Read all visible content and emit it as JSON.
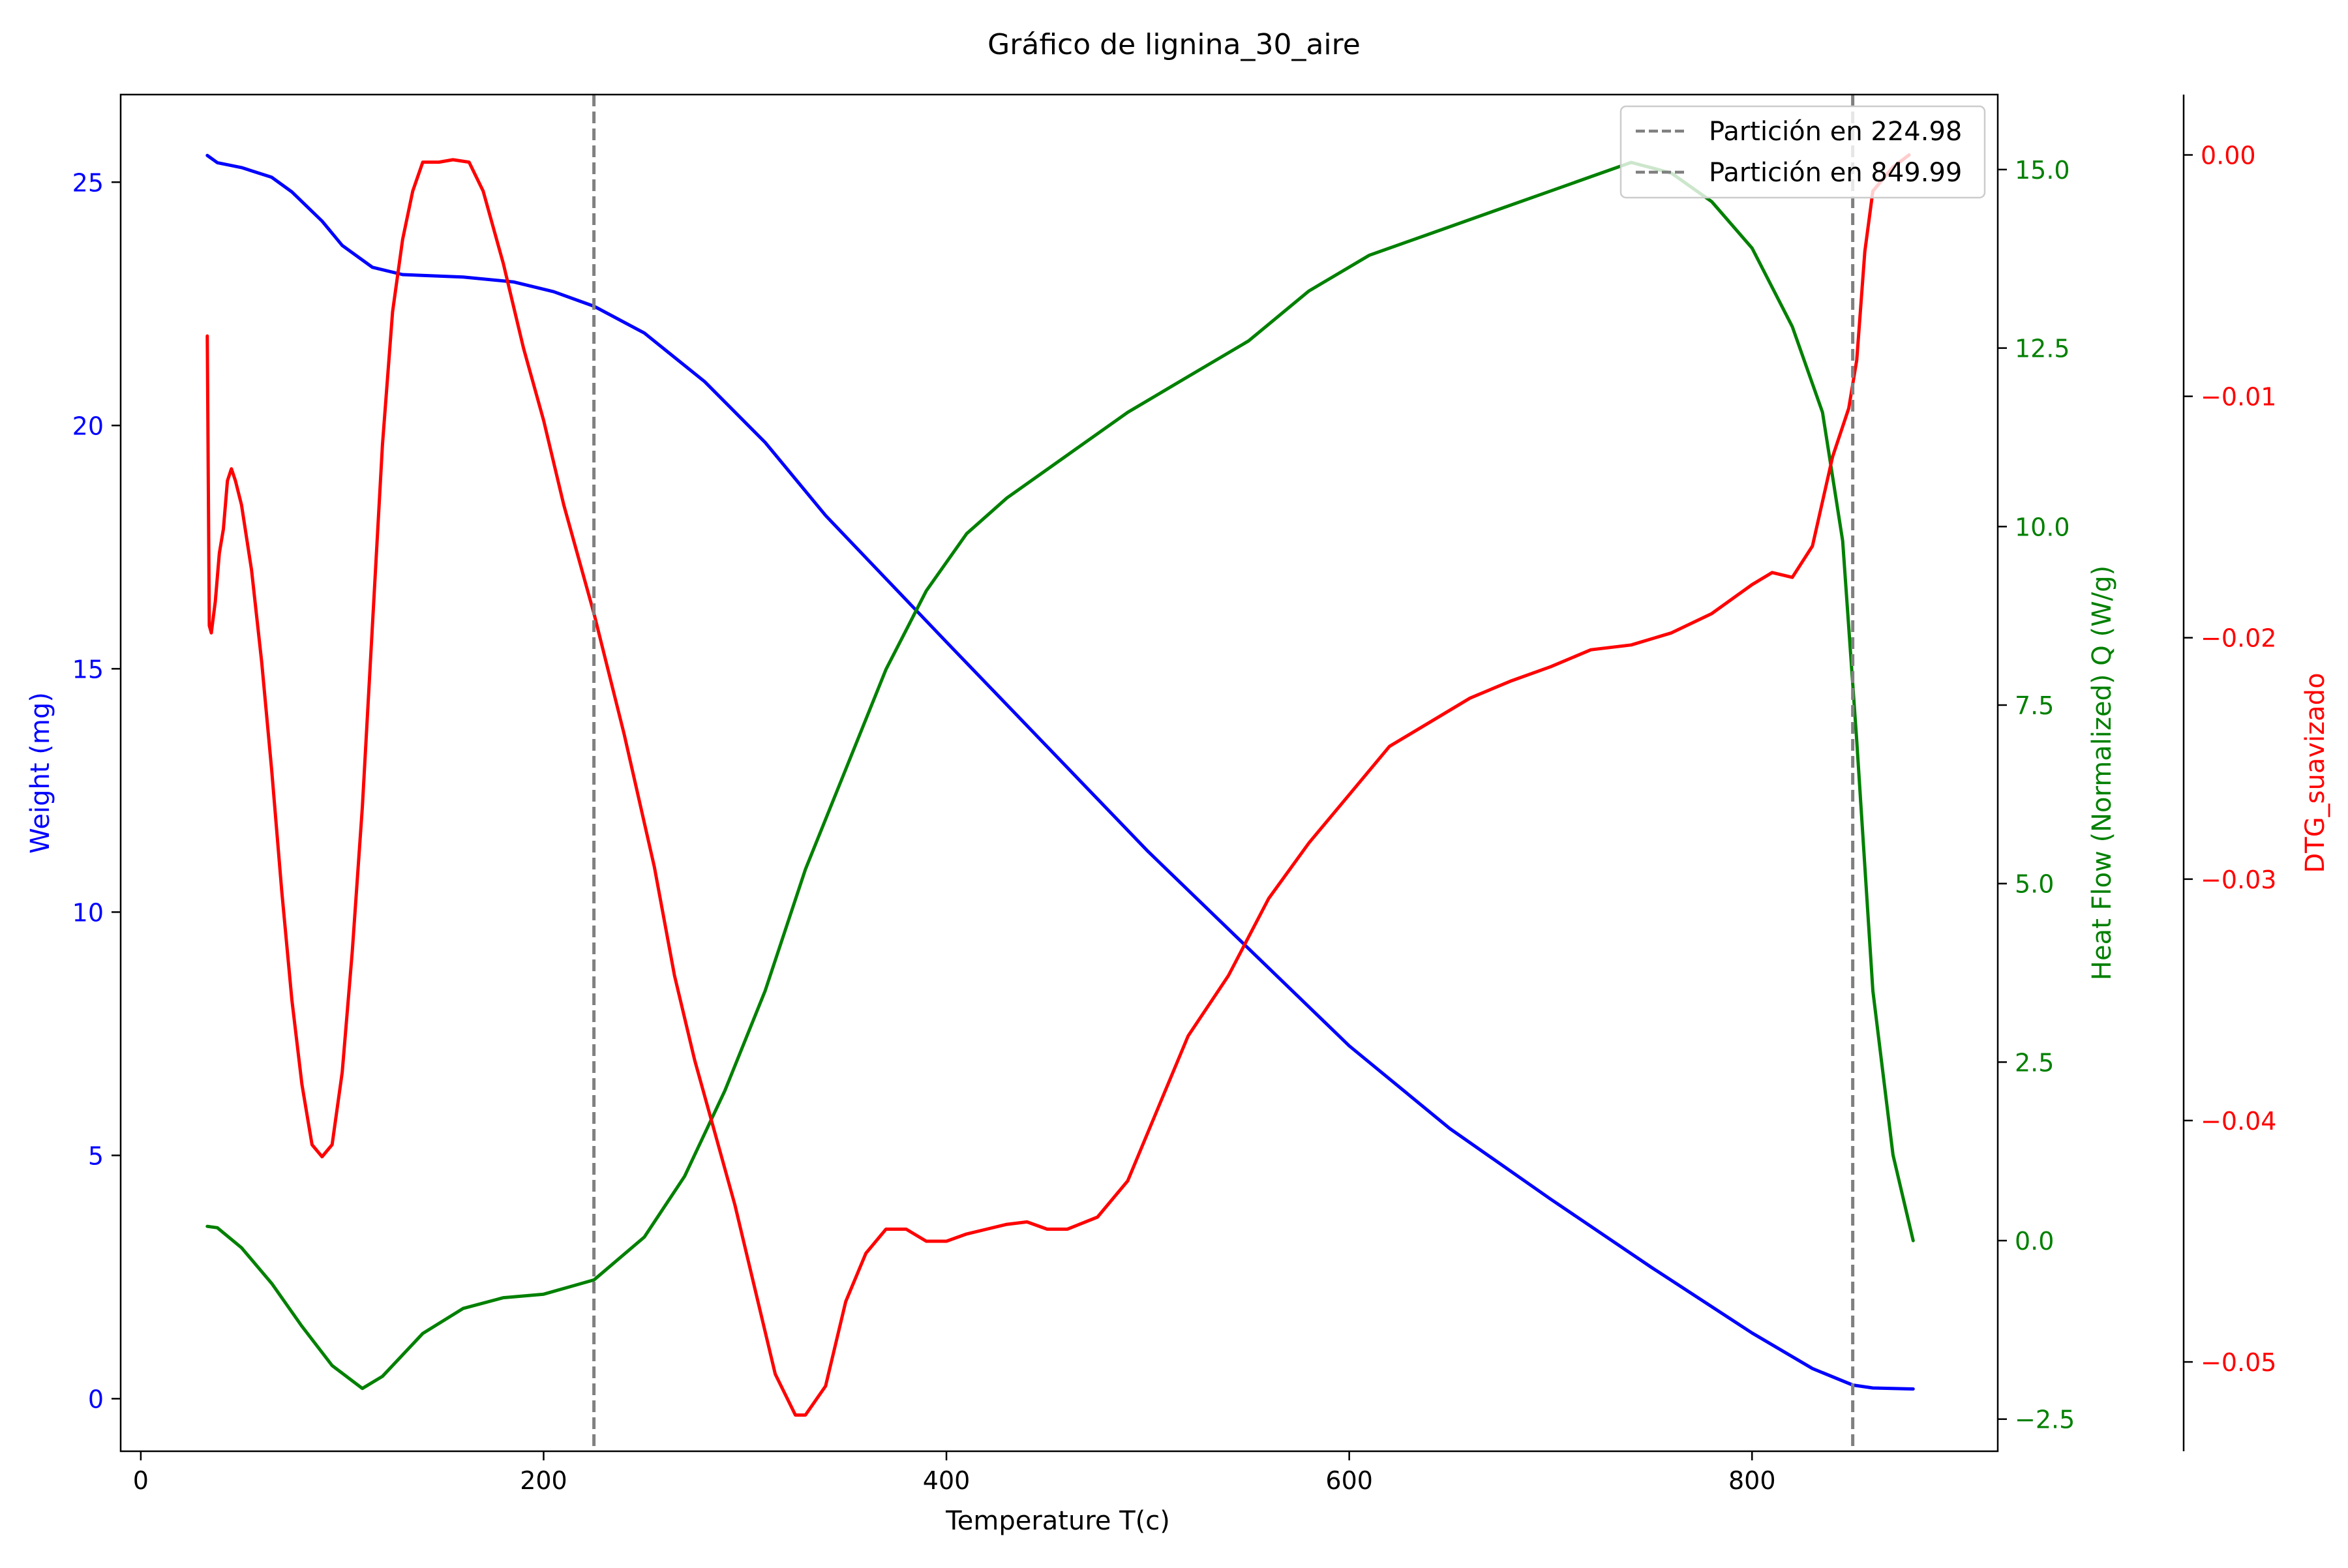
{
  "chart_data": {
    "type": "line",
    "title": "Gráfico de lignina_30_aire",
    "xlabel": "Temperature T(c)",
    "xlim": [
      -10,
      922
    ],
    "x_ticks": [
      0,
      200,
      400,
      600,
      800
    ],
    "legend_position": "top-right",
    "grid": false,
    "axes": {
      "weight": {
        "label": "Weight (mg)",
        "color": "#0000ff",
        "ylim": [
          -1.08,
          26.8
        ],
        "ticks": [
          0,
          5,
          10,
          15,
          20,
          25
        ]
      },
      "heat_flow": {
        "label": "Heat Flow (Normalized) Q (W/g)",
        "color": "#008000",
        "ylim": [
          -2.95,
          16.05
        ],
        "ticks": [
          -2.5,
          0.0,
          2.5,
          5.0,
          7.5,
          10.0,
          12.5,
          15.0
        ],
        "tick_labels": [
          "−2.5",
          "0.0",
          "2.5",
          "5.0",
          "7.5",
          "10.0",
          "12.5",
          "15.0"
        ]
      },
      "dtg": {
        "label": "DTG_suavizado",
        "color": "#ff0000",
        "ylim": [
          -0.0537,
          0.0025
        ],
        "ticks": [
          -0.05,
          -0.04,
          -0.03,
          -0.02,
          -0.01,
          0.0
        ],
        "tick_labels": [
          "−0.05",
          "−0.04",
          "−0.03",
          "−0.02",
          "−0.01",
          "0.00"
        ]
      }
    },
    "partitions": [
      {
        "x": 224.98,
        "label": "Partición en 224.98"
      },
      {
        "x": 849.99,
        "label": "Partición en 849.99"
      }
    ],
    "series": [
      {
        "name": "Weight",
        "axis": "weight",
        "color": "#0000ff",
        "points": [
          [
            33,
            25.55
          ],
          [
            38,
            25.4
          ],
          [
            50,
            25.3
          ],
          [
            65,
            25.1
          ],
          [
            75,
            24.8
          ],
          [
            90,
            24.2
          ],
          [
            100,
            23.7
          ],
          [
            115,
            23.25
          ],
          [
            130,
            23.1
          ],
          [
            160,
            23.05
          ],
          [
            185,
            22.95
          ],
          [
            205,
            22.75
          ],
          [
            225,
            22.45
          ],
          [
            250,
            21.9
          ],
          [
            280,
            20.9
          ],
          [
            310,
            19.65
          ],
          [
            340,
            18.15
          ],
          [
            370,
            16.85
          ],
          [
            400,
            15.55
          ],
          [
            450,
            13.4
          ],
          [
            500,
            11.25
          ],
          [
            550,
            9.25
          ],
          [
            600,
            7.25
          ],
          [
            650,
            5.55
          ],
          [
            700,
            4.1
          ],
          [
            750,
            2.7
          ],
          [
            800,
            1.35
          ],
          [
            830,
            0.62
          ],
          [
            850,
            0.28
          ],
          [
            860,
            0.22
          ],
          [
            880,
            0.2
          ]
        ]
      },
      {
        "name": "Heat Flow",
        "axis": "heat_flow",
        "color": "#008000",
        "points": [
          [
            33,
            0.2
          ],
          [
            38,
            0.18
          ],
          [
            50,
            -0.1
          ],
          [
            65,
            -0.6
          ],
          [
            80,
            -1.2
          ],
          [
            95,
            -1.75
          ],
          [
            110,
            -2.07
          ],
          [
            120,
            -1.9
          ],
          [
            140,
            -1.3
          ],
          [
            160,
            -0.95
          ],
          [
            180,
            -0.8
          ],
          [
            200,
            -0.75
          ],
          [
            225,
            -0.55
          ],
          [
            250,
            0.05
          ],
          [
            270,
            0.9
          ],
          [
            290,
            2.1
          ],
          [
            310,
            3.5
          ],
          [
            330,
            5.2
          ],
          [
            350,
            6.6
          ],
          [
            370,
            8.0
          ],
          [
            390,
            9.1
          ],
          [
            410,
            9.9
          ],
          [
            430,
            10.4
          ],
          [
            460,
            11.0
          ],
          [
            490,
            11.6
          ],
          [
            520,
            12.1
          ],
          [
            550,
            12.6
          ],
          [
            580,
            13.3
          ],
          [
            610,
            13.8
          ],
          [
            640,
            14.1
          ],
          [
            670,
            14.4
          ],
          [
            700,
            14.7
          ],
          [
            720,
            14.9
          ],
          [
            740,
            15.1
          ],
          [
            760,
            14.95
          ],
          [
            780,
            14.55
          ],
          [
            800,
            13.9
          ],
          [
            820,
            12.8
          ],
          [
            835,
            11.6
          ],
          [
            845,
            9.8
          ],
          [
            852,
            7.0
          ],
          [
            860,
            3.5
          ],
          [
            870,
            1.2
          ],
          [
            880,
            0.0
          ]
        ]
      },
      {
        "name": "DTG_suavizado",
        "axis": "dtg",
        "color": "#ff0000",
        "points": [
          [
            33,
            -0.0075
          ],
          [
            34,
            -0.0195
          ],
          [
            35,
            -0.0198
          ],
          [
            37,
            -0.0185
          ],
          [
            39,
            -0.0165
          ],
          [
            41,
            -0.0155
          ],
          [
            43,
            -0.0135
          ],
          [
            45,
            -0.013
          ],
          [
            47,
            -0.0135
          ],
          [
            50,
            -0.0145
          ],
          [
            55,
            -0.0172
          ],
          [
            60,
            -0.021
          ],
          [
            65,
            -0.0255
          ],
          [
            70,
            -0.0305
          ],
          [
            75,
            -0.035
          ],
          [
            80,
            -0.0385
          ],
          [
            85,
            -0.041
          ],
          [
            90,
            -0.0415
          ],
          [
            95,
            -0.041
          ],
          [
            100,
            -0.038
          ],
          [
            105,
            -0.033
          ],
          [
            110,
            -0.027
          ],
          [
            115,
            -0.0195
          ],
          [
            120,
            -0.012
          ],
          [
            125,
            -0.0065
          ],
          [
            130,
            -0.0035
          ],
          [
            135,
            -0.0015
          ],
          [
            140,
            -0.0003
          ],
          [
            148,
            -0.0003
          ],
          [
            155,
            -0.0002
          ],
          [
            163,
            -0.0003
          ],
          [
            170,
            -0.0015
          ],
          [
            180,
            -0.0045
          ],
          [
            190,
            -0.008
          ],
          [
            200,
            -0.011
          ],
          [
            210,
            -0.0145
          ],
          [
            225,
            -0.019
          ],
          [
            240,
            -0.024
          ],
          [
            255,
            -0.0295
          ],
          [
            265,
            -0.034
          ],
          [
            275,
            -0.0375
          ],
          [
            285,
            -0.0405
          ],
          [
            295,
            -0.0435
          ],
          [
            305,
            -0.047
          ],
          [
            315,
            -0.0505
          ],
          [
            325,
            -0.0522
          ],
          [
            330,
            -0.0522
          ],
          [
            340,
            -0.051
          ],
          [
            350,
            -0.0475
          ],
          [
            360,
            -0.0455
          ],
          [
            370,
            -0.0445
          ],
          [
            380,
            -0.0445
          ],
          [
            390,
            -0.045
          ],
          [
            400,
            -0.045
          ],
          [
            410,
            -0.0447
          ],
          [
            420,
            -0.0445
          ],
          [
            430,
            -0.0443
          ],
          [
            440,
            -0.0442
          ],
          [
            450,
            -0.0445
          ],
          [
            460,
            -0.0445
          ],
          [
            475,
            -0.044
          ],
          [
            490,
            -0.0425
          ],
          [
            505,
            -0.0395
          ],
          [
            520,
            -0.0365
          ],
          [
            540,
            -0.034
          ],
          [
            560,
            -0.0308
          ],
          [
            580,
            -0.0285
          ],
          [
            600,
            -0.0265
          ],
          [
            620,
            -0.0245
          ],
          [
            640,
            -0.0235
          ],
          [
            660,
            -0.0225
          ],
          [
            680,
            -0.0218
          ],
          [
            700,
            -0.0212
          ],
          [
            720,
            -0.0205
          ],
          [
            740,
            -0.0203
          ],
          [
            760,
            -0.0198
          ],
          [
            780,
            -0.019
          ],
          [
            800,
            -0.0178
          ],
          [
            810,
            -0.0173
          ],
          [
            820,
            -0.0175
          ],
          [
            830,
            -0.0162
          ],
          [
            840,
            -0.0125
          ],
          [
            848,
            -0.0105
          ],
          [
            852,
            -0.0085
          ],
          [
            856,
            -0.004
          ],
          [
            860,
            -0.0015
          ],
          [
            870,
            -0.0005
          ],
          [
            878,
            0.0
          ]
        ]
      }
    ]
  }
}
